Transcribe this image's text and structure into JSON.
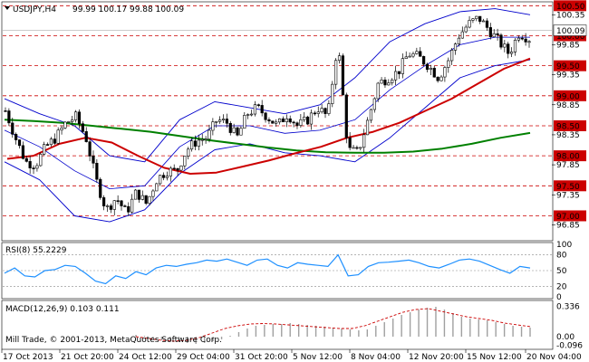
{
  "window": {
    "symbol_header": "USDJPY,H4",
    "ohlc_header": "99.99 100.17 99.88 100.09",
    "copyright": "Mill Trade, © 2001-2013, MetaQuotes Software Corp."
  },
  "colors": {
    "background": "#ffffff",
    "candle": "#000000",
    "bollinger": "#0000cc",
    "ma_fast": "#cc0000",
    "ma_slow": "#008000",
    "level_line": "#cc0000",
    "level_label_bg": "#cc0000",
    "rsi_line": "#1e90ff",
    "macd_hist": "#a0a0a0",
    "macd_signal": "#cc0000",
    "grid": "#888888"
  },
  "chart_data": [
    {
      "type": "candlestick",
      "price_axis": {
        "ylim": [
          96.6,
          100.55
        ],
        "tick_labels": [
          "100.35",
          "99.85",
          "99.35",
          "98.85",
          "98.35",
          "97.85",
          "97.35",
          "96.85"
        ],
        "tick_values": [
          100.35,
          99.85,
          99.35,
          98.85,
          98.35,
          97.85,
          97.35,
          96.85
        ]
      },
      "levels": [
        {
          "value": 100.5,
          "label": "100.50"
        },
        {
          "value": 100.0,
          "label": "100.00"
        },
        {
          "value": 99.5,
          "label": "99.50"
        },
        {
          "value": 99.0,
          "label": "99.00"
        },
        {
          "value": 98.5,
          "label": "98.50"
        },
        {
          "value": 98.0,
          "label": "98.00"
        },
        {
          "value": 97.5,
          "label": "97.50"
        },
        {
          "value": 97.0,
          "label": "97.00"
        }
      ],
      "current_price": {
        "value": 100.09,
        "label": "100.09"
      },
      "x_labels": [
        "17 Oct 2013",
        "21 Oct 20:00",
        "24 Oct 12:00",
        "29 Oct 04:00",
        "31 Oct 20:00",
        "5 Nov 12:00",
        "8 Nov 04:00",
        "12 Nov 20:00",
        "15 Nov 12:00",
        "20 Nov 04:00"
      ],
      "close_path": [
        98.75,
        98.3,
        97.9,
        97.85,
        98.15,
        98.3,
        98.55,
        98.65,
        98.3,
        97.6,
        97.1,
        97.3,
        97.05,
        97.4,
        97.2,
        97.6,
        97.75,
        97.75,
        98.1,
        98.25,
        98.3,
        98.6,
        98.55,
        98.3,
        98.7,
        98.8,
        98.65,
        98.5,
        98.7,
        98.5,
        98.6,
        98.8,
        98.65,
        99.9,
        98.1,
        98.05,
        98.6,
        99.2,
        99.3,
        99.4,
        99.7,
        99.65,
        99.5,
        99.3,
        99.6,
        100.0,
        100.2,
        100.3,
        100.1,
        99.9,
        99.7,
        100.05,
        99.95
      ],
      "ma_slow": [
        98.6,
        98.58,
        98.55,
        98.5,
        98.45,
        98.4,
        98.33,
        98.26,
        98.2,
        98.14,
        98.09,
        98.06,
        98.05,
        98.05,
        98.07,
        98.12,
        98.2,
        98.3,
        98.38
      ],
      "ma_fast": [
        97.95,
        98.0,
        98.2,
        98.3,
        98.22,
        98.0,
        97.8,
        97.7,
        97.72,
        97.82,
        97.92,
        98.04,
        98.15,
        98.3,
        98.4,
        98.55,
        98.75,
        98.95,
        99.2,
        99.45,
        99.62
      ],
      "bb_upper": [
        98.95,
        98.7,
        98.5,
        98.0,
        97.9,
        98.6,
        98.9,
        98.8,
        98.7,
        98.85,
        99.3,
        99.9,
        100.2,
        100.4,
        100.45,
        100.35
      ],
      "bb_lower": [
        97.9,
        97.6,
        97.0,
        96.9,
        97.1,
        97.7,
        98.1,
        98.2,
        98.05,
        98.0,
        97.9,
        98.3,
        98.8,
        99.3,
        99.5,
        99.6
      ]
    },
    {
      "type": "line",
      "name": "RSI(8)",
      "header": "RSI(8) 55.2229",
      "ylim": [
        0,
        100
      ],
      "tick_labels": [
        "100",
        "80",
        "50",
        "20",
        "0"
      ],
      "tick_values": [
        100,
        80,
        50,
        20,
        0
      ],
      "levels": [
        80,
        50,
        20
      ],
      "values": [
        45,
        55,
        40,
        38,
        50,
        52,
        60,
        58,
        45,
        30,
        25,
        40,
        35,
        48,
        42,
        55,
        60,
        58,
        62,
        65,
        70,
        68,
        72,
        66,
        60,
        70,
        72,
        60,
        55,
        65,
        62,
        60,
        58,
        80,
        40,
        42,
        58,
        65,
        66,
        68,
        70,
        65,
        58,
        55,
        62,
        70,
        72,
        68,
        60,
        52,
        45,
        58,
        55
      ]
    },
    {
      "type": "bar",
      "name": "MACD(12,26,9)",
      "header": "MACD(12,26,9) 0.103 0.111",
      "ylim": [
        -0.12,
        0.38
      ],
      "tick_labels": [
        "0.336",
        "0.00",
        "-0.096"
      ],
      "tick_values": [
        0.336,
        0.0,
        -0.096
      ],
      "values": [
        0.02,
        0.01,
        -0.02,
        -0.04,
        -0.05,
        -0.06,
        -0.07,
        -0.08,
        -0.07,
        -0.05,
        -0.03,
        0.01,
        0.05,
        0.09,
        0.12,
        0.13,
        0.14,
        0.14,
        0.15,
        0.14,
        0.13,
        0.12,
        0.11,
        0.1,
        0.09,
        0.08,
        0.07,
        0.08,
        0.12,
        0.16,
        0.2,
        0.24,
        0.27,
        0.3,
        0.32,
        0.33,
        0.3,
        0.26,
        0.22,
        0.2,
        0.19,
        0.18,
        0.16,
        0.14,
        0.12,
        0.11,
        0.1
      ],
      "signal": [
        0.0,
        -0.02,
        -0.04,
        -0.05,
        -0.04,
        -0.01,
        0.04,
        0.09,
        0.12,
        0.14,
        0.145,
        0.14,
        0.13,
        0.12,
        0.11,
        0.1,
        0.09,
        0.09,
        0.12,
        0.17,
        0.22,
        0.27,
        0.3,
        0.31,
        0.28,
        0.25,
        0.22,
        0.2,
        0.18,
        0.15,
        0.13,
        0.111
      ]
    }
  ]
}
